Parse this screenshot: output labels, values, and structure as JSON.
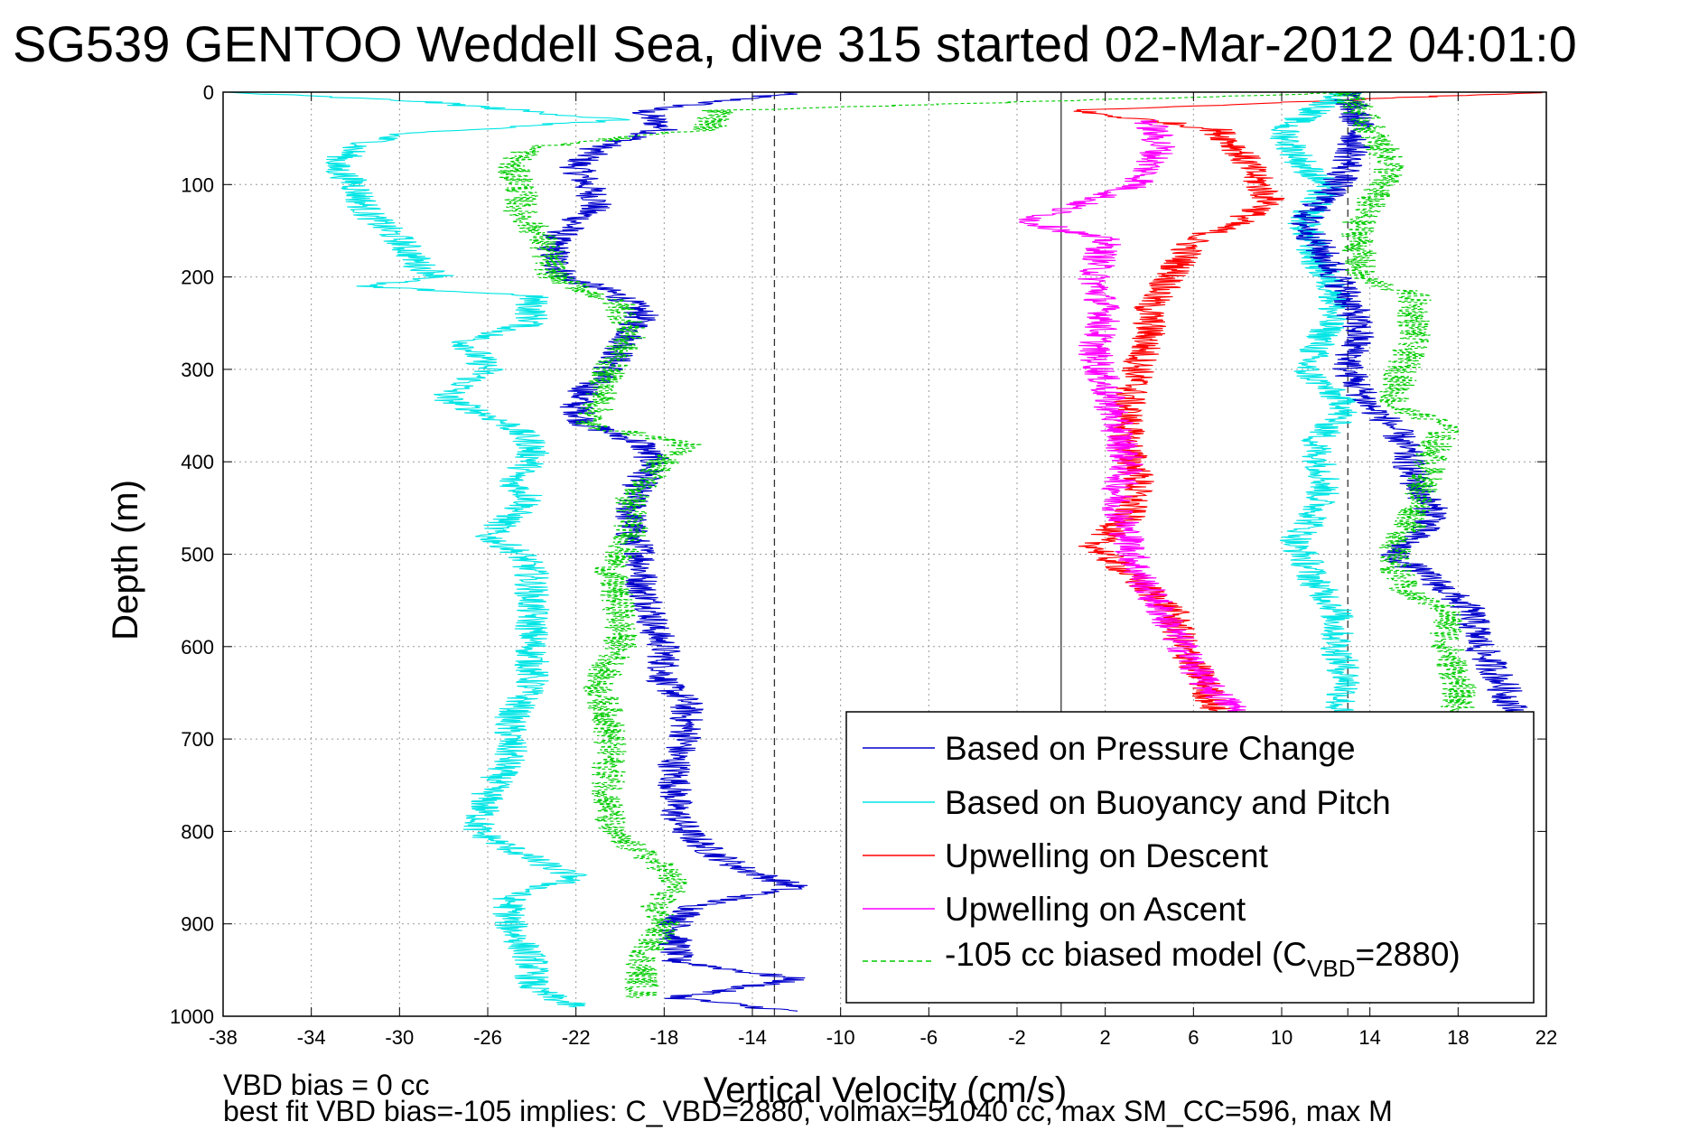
{
  "chart_data": {
    "type": "line",
    "title": "SG539 GENTOO Weddell Sea, dive 315 started 02-Mar-2012 04:01:0",
    "xlabel": "Vertical Velocity (cm/s)",
    "ylabel": "Depth (m)",
    "xlim": [
      -38,
      22
    ],
    "ylim": [
      0,
      1000
    ],
    "y_reversed": true,
    "grid": true,
    "xticks": [
      -38,
      -34,
      -30,
      -26,
      -22,
      -18,
      -14,
      -10,
      -6,
      -2,
      2,
      6,
      10,
      14,
      18,
      22
    ],
    "yticks": [
      0,
      100,
      200,
      300,
      400,
      500,
      600,
      700,
      800,
      900,
      1000
    ],
    "xtick_labels": [
      "-38",
      "-34",
      "-30",
      "-26",
      "-22",
      "-18",
      "-14",
      "-10",
      "-6",
      "-2",
      "2",
      "6",
      "10",
      "14",
      "18",
      "22"
    ],
    "ytick_labels": [
      "0",
      "100",
      "200",
      "300",
      "400",
      "500",
      "600",
      "700",
      "800",
      "900",
      "1000"
    ],
    "reference_lines": [
      {
        "x": -13,
        "style": "dashed"
      },
      {
        "x": 0,
        "style": "solid"
      },
      {
        "x": 13,
        "style": "dashed"
      }
    ],
    "legend_position": "bottom-right",
    "series": [
      {
        "name": "Based on Pressure Change",
        "color": "#0000cc",
        "style": "solid",
        "depth": [
          0,
          20,
          40,
          60,
          80,
          100,
          120,
          140,
          160,
          180,
          200,
          220,
          240,
          260,
          280,
          300,
          320,
          340,
          360,
          380,
          400,
          420,
          440,
          460,
          480,
          500,
          520,
          540,
          560,
          580,
          600,
          620,
          640,
          660,
          680,
          700,
          720,
          740,
          760,
          780,
          800,
          820,
          840,
          860,
          880,
          900,
          920,
          940,
          960,
          980,
          995
        ],
        "velocity": [
          -12,
          -19,
          -18,
          -21,
          -22,
          -21.5,
          -21,
          -22,
          -23,
          -23,
          -22.5,
          -20,
          -19,
          -19.5,
          -20,
          -20.5,
          -21.5,
          -22,
          -21.5,
          -19,
          -18.5,
          -19,
          -19.5,
          -19.5,
          -19.5,
          -19,
          -19,
          -19,
          -18.5,
          -18.5,
          -18,
          -18,
          -18,
          -17,
          -17,
          -17,
          -17.5,
          -17.5,
          -17.5,
          -17.5,
          -17,
          -16,
          -14.5,
          -12,
          -16.5,
          -17.5,
          -17.5,
          -17.5,
          -12,
          -17.5,
          -12
        ]
      },
      {
        "name": "Based on Buoyancy and Pitch",
        "color": "#00e5e5",
        "style": "solid",
        "depth": [
          0,
          10,
          30,
          45,
          60,
          80,
          100,
          130,
          160,
          190,
          200,
          210,
          220,
          250,
          270,
          300,
          330,
          360,
          380,
          400,
          420,
          440,
          460,
          480,
          500,
          520,
          560,
          600,
          640,
          680,
          720,
          760,
          800,
          830,
          850,
          870,
          900,
          940,
          970,
          990
        ],
        "velocity": [
          -38,
          -29,
          -20,
          -30,
          -32,
          -33,
          -32,
          -31.5,
          -30,
          -29,
          -28,
          -32,
          -24,
          -24,
          -27,
          -26,
          -28,
          -25,
          -24,
          -24,
          -25,
          -24,
          -25,
          -26,
          -24.5,
          -24,
          -24,
          -24,
          -24,
          -25,
          -25,
          -26,
          -26.5,
          -24,
          -22,
          -25,
          -25,
          -24,
          -24,
          -22
        ]
      },
      {
        "name": "Upwelling on Descent",
        "color": "#ff0000",
        "style": "solid",
        "depth": [
          0,
          20,
          40,
          60,
          80,
          100,
          120,
          140,
          160,
          180,
          200,
          230,
          260,
          300,
          340,
          380,
          420,
          460,
          490,
          520,
          560,
          600,
          640,
          670
        ],
        "velocity": [
          22,
          0.5,
          7,
          8,
          8.5,
          9,
          9.5,
          8,
          6,
          5.5,
          5,
          4,
          4,
          3.5,
          3,
          3,
          3.5,
          3,
          1.5,
          3,
          5,
          5.5,
          6.5,
          7
        ]
      },
      {
        "name": "Upwelling on Ascent",
        "color": "#ff00ff",
        "style": "solid",
        "depth": [
          30,
          60,
          100,
          140,
          160,
          200,
          240,
          280,
          320,
          360,
          400,
          440,
          480,
          520,
          560,
          600,
          640,
          670
        ],
        "velocity": [
          4,
          4.5,
          3.5,
          -1.5,
          2,
          1.5,
          2,
          1.5,
          2,
          2.5,
          3,
          2.5,
          3,
          3.5,
          4.5,
          5.5,
          6.5,
          8
        ]
      },
      {
        "name": "-105 cc biased model (C_VBD=2880)",
        "color": "#00cc00",
        "style": "dashed",
        "depth": [
          0,
          20,
          40,
          60,
          80,
          100,
          130,
          160,
          200,
          230,
          260,
          300,
          340,
          360,
          380,
          400,
          440,
          480,
          520,
          560,
          600,
          640,
          680,
          720,
          760,
          800,
          840,
          860,
          880,
          900,
          940,
          980
        ],
        "velocity": [
          14,
          -15.5,
          -16,
          -24,
          -25,
          -24.5,
          -24.5,
          -23.5,
          -23,
          -20,
          -19.5,
          -20.5,
          -21,
          -21.5,
          -17,
          -18,
          -19.5,
          -19.5,
          -20.5,
          -20,
          -20,
          -21,
          -20.5,
          -20.5,
          -20.5,
          -20.5,
          -18,
          -17.5,
          -18.5,
          -18,
          -19,
          -19
        ]
      },
      {
        "name": "",
        "color": "#00e5e5",
        "style": "solid",
        "depth": [
          0,
          40,
          80,
          100,
          140,
          180,
          220,
          260,
          300,
          340,
          380,
          420,
          460,
          490,
          500,
          530,
          560,
          600,
          640,
          670
        ],
        "velocity": [
          13,
          10,
          11,
          12,
          11,
          11.5,
          12.5,
          12,
          11,
          13,
          11.5,
          12,
          11.5,
          10.5,
          11,
          11.5,
          12.5,
          12.5,
          13,
          12.5
        ]
      },
      {
        "name": "",
        "color": "#0000cc",
        "style": "solid",
        "depth": [
          0,
          40,
          80,
          100,
          140,
          180,
          220,
          260,
          300,
          340,
          360,
          380,
          420,
          460,
          500,
          530,
          560,
          600,
          640,
          670
        ],
        "velocity": [
          13,
          13.5,
          13,
          12.5,
          11,
          12,
          13,
          13.5,
          13,
          14,
          15,
          15.5,
          16,
          17,
          15,
          17,
          18.5,
          19,
          20,
          20.5
        ]
      },
      {
        "name": "",
        "color": "#00cc00",
        "style": "dashed",
        "depth": [
          0,
          40,
          80,
          100,
          140,
          180,
          200,
          220,
          260,
          300,
          340,
          360,
          380,
          420,
          460,
          500,
          540,
          560,
          600,
          640,
          670
        ],
        "velocity": [
          13,
          14,
          15,
          14.5,
          13.5,
          13.5,
          13.5,
          16,
          16,
          15.5,
          15,
          17.5,
          17,
          16.5,
          16,
          15,
          15.5,
          17.5,
          17.5,
          18,
          18
        ]
      }
    ]
  },
  "title": "SG539 GENTOO Weddell Sea, dive 315 started 02-Mar-2012 04:01:0",
  "ylabel": "Depth (m)",
  "xlabel": "Vertical Velocity (cm/s)",
  "legend": {
    "pressure": "Based on Pressure Change",
    "buoyancy": "Based on Buoyancy and Pitch",
    "descent": "Upwelling on Descent",
    "ascent": "Upwelling on Ascent",
    "model_prefix": "-105 cc biased model (C",
    "model_sub": "VBD",
    "model_suffix": "=2880)"
  },
  "footer": {
    "line1": "VBD bias = 0 cc",
    "line2": "best fit VBD bias=-105 implies: C_VBD=2880, volmax=51040 cc, max SM_CC=596, max M"
  }
}
